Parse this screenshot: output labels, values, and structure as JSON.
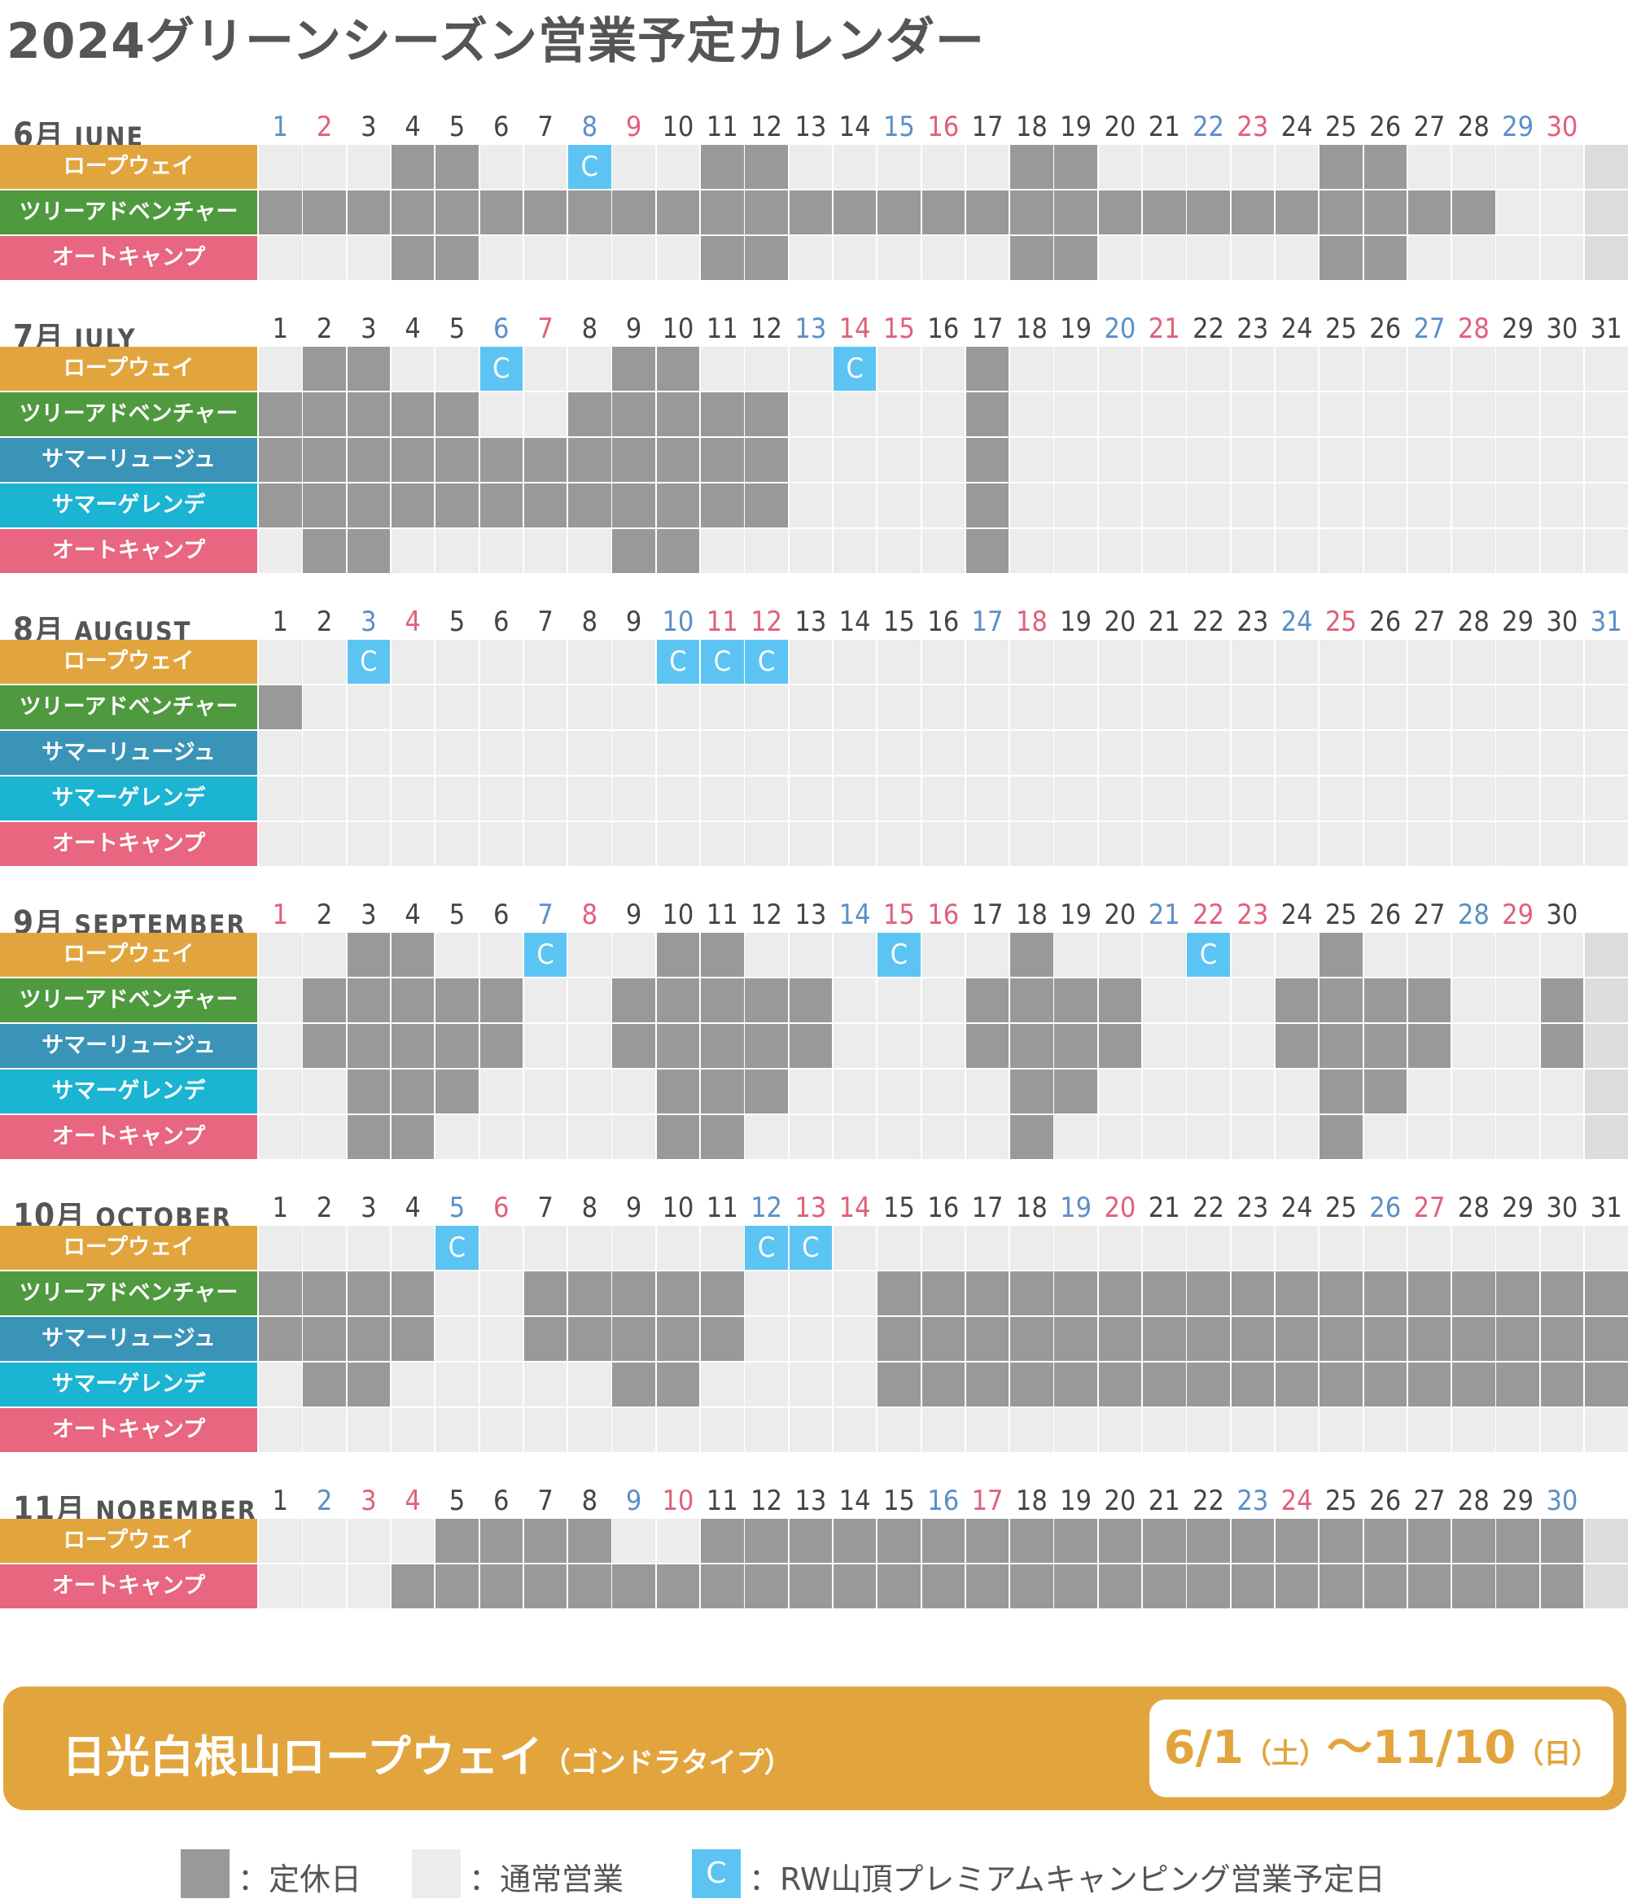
{
  "title": "2024グリーンシーズン営業予定カレンダー",
  "activities": {
    "ropeway": {
      "label": "ロープウェイ",
      "color": "#e2a53e"
    },
    "tree": {
      "label": "ツリーアドベンチャー",
      "color": "#4f9a3f"
    },
    "luge": {
      "label": "サマーリュージュ",
      "color": "#3a94b8"
    },
    "gelande": {
      "label": "サマーゲレンデ",
      "color": "#1bb4d2"
    },
    "camp": {
      "label": "オートキャンプ",
      "color": "#e8667f"
    }
  },
  "colors": {
    "closed": "#999999",
    "open": "#ececec",
    "camp_cell": "#5cc4f2",
    "saturday": "#5b8fc7",
    "holiday": "#e0607a"
  },
  "months": [
    {
      "num": "6",
      "kanji": "月",
      "name": "JUNE",
      "days": 30,
      "sat": [
        1,
        8,
        15,
        22,
        29
      ],
      "sun": [
        2,
        9,
        16,
        23,
        30
      ],
      "rows": [
        {
          "act": "ropeway",
          "closed": [
            4,
            5,
            11,
            12,
            18,
            19,
            25,
            26
          ],
          "camp": [
            8
          ]
        },
        {
          "act": "tree",
          "closed": [
            1,
            2,
            3,
            4,
            5,
            6,
            7,
            8,
            9,
            10,
            11,
            12,
            13,
            14,
            15,
            16,
            17,
            18,
            19,
            20,
            21,
            22,
            23,
            24,
            25,
            26,
            27,
            28
          ],
          "camp": []
        },
        {
          "act": "camp",
          "closed": [
            4,
            5,
            11,
            12,
            18,
            19,
            25,
            26
          ],
          "camp": []
        }
      ]
    },
    {
      "num": "7",
      "kanji": "月",
      "name": "JULY",
      "days": 31,
      "sat": [
        6,
        13,
        20,
        27
      ],
      "sun": [
        7,
        14,
        15,
        21,
        28
      ],
      "rows": [
        {
          "act": "ropeway",
          "closed": [
            2,
            3,
            9,
            10,
            17
          ],
          "camp": [
            6,
            14
          ]
        },
        {
          "act": "tree",
          "closed": [
            1,
            2,
            3,
            4,
            5,
            8,
            9,
            10,
            11,
            12,
            17
          ],
          "camp": []
        },
        {
          "act": "luge",
          "closed": [
            1,
            2,
            3,
            4,
            5,
            6,
            7,
            8,
            9,
            10,
            11,
            12,
            17
          ],
          "camp": []
        },
        {
          "act": "gelande",
          "closed": [
            1,
            2,
            3,
            4,
            5,
            6,
            7,
            8,
            9,
            10,
            11,
            12,
            17
          ],
          "camp": []
        },
        {
          "act": "camp",
          "closed": [
            2,
            3,
            9,
            10,
            17
          ],
          "camp": []
        }
      ]
    },
    {
      "num": "8",
      "kanji": "月",
      "name": "AUGUST",
      "days": 31,
      "sat": [
        3,
        10,
        17,
        24,
        31
      ],
      "sun": [
        4,
        11,
        12,
        18,
        25
      ],
      "rows": [
        {
          "act": "ropeway",
          "closed": [],
          "camp": [
            3,
            10,
            11,
            12
          ]
        },
        {
          "act": "tree",
          "closed": [
            1
          ],
          "camp": []
        },
        {
          "act": "luge",
          "closed": [],
          "camp": []
        },
        {
          "act": "gelande",
          "closed": [],
          "camp": []
        },
        {
          "act": "camp",
          "closed": [],
          "camp": []
        }
      ]
    },
    {
      "num": "9",
      "kanji": "月",
      "name": "SEPTEMBER",
      "days": 30,
      "sat": [
        7,
        14,
        21,
        28
      ],
      "sun": [
        1,
        8,
        15,
        16,
        22,
        23,
        29
      ],
      "rows": [
        {
          "act": "ropeway",
          "closed": [
            3,
            4,
            10,
            11,
            18,
            25
          ],
          "camp": [
            7,
            15,
            22
          ]
        },
        {
          "act": "tree",
          "closed": [
            2,
            3,
            4,
            5,
            6,
            9,
            10,
            11,
            12,
            13,
            17,
            18,
            19,
            20,
            24,
            25,
            26,
            27,
            30
          ],
          "camp": []
        },
        {
          "act": "luge",
          "closed": [
            2,
            3,
            4,
            5,
            6,
            9,
            10,
            11,
            12,
            13,
            17,
            18,
            19,
            20,
            24,
            25,
            26,
            27,
            30
          ],
          "camp": []
        },
        {
          "act": "gelande",
          "closed": [
            3,
            4,
            5,
            10,
            11,
            12,
            18,
            19,
            25,
            26
          ],
          "camp": []
        },
        {
          "act": "camp",
          "closed": [
            3,
            4,
            10,
            11,
            18,
            25
          ],
          "camp": []
        }
      ]
    },
    {
      "num": "10",
      "kanji": "月",
      "name": "OCTOBER",
      "days": 31,
      "sat": [
        5,
        12,
        19,
        26
      ],
      "sun": [
        6,
        13,
        14,
        20,
        27
      ],
      "rows": [
        {
          "act": "ropeway",
          "closed": [],
          "camp": [
            5,
            12,
            13
          ]
        },
        {
          "act": "tree",
          "closed": [
            1,
            2,
            3,
            4,
            7,
            8,
            9,
            10,
            11,
            15,
            16,
            17,
            18,
            19,
            20,
            21,
            22,
            23,
            24,
            25,
            26,
            27,
            28,
            29,
            30,
            31
          ],
          "camp": []
        },
        {
          "act": "luge",
          "closed": [
            1,
            2,
            3,
            4,
            7,
            8,
            9,
            10,
            11,
            15,
            16,
            17,
            18,
            19,
            20,
            21,
            22,
            23,
            24,
            25,
            26,
            27,
            28,
            29,
            30,
            31
          ],
          "camp": []
        },
        {
          "act": "gelande",
          "closed": [
            2,
            3,
            9,
            10,
            15,
            16,
            17,
            18,
            19,
            20,
            21,
            22,
            23,
            24,
            25,
            26,
            27,
            28,
            29,
            30,
            31
          ],
          "camp": []
        },
        {
          "act": "camp",
          "closed": [],
          "camp": []
        }
      ]
    },
    {
      "num": "11",
      "kanji": "月",
      "name": "NOBEMBER",
      "days": 30,
      "sat": [
        2,
        9,
        16,
        23,
        30
      ],
      "sun": [
        3,
        4,
        10,
        17,
        24
      ],
      "rows": [
        {
          "act": "ropeway",
          "closed": [
            5,
            6,
            7,
            8,
            11,
            12,
            13,
            14,
            15,
            16,
            17,
            18,
            19,
            20,
            21,
            22,
            23,
            24,
            25,
            26,
            27,
            28,
            29,
            30
          ],
          "camp": []
        },
        {
          "act": "camp",
          "closed": [
            4,
            5,
            6,
            7,
            8,
            9,
            10,
            11,
            12,
            13,
            14,
            15,
            16,
            17,
            18,
            19,
            20,
            21,
            22,
            23,
            24,
            25,
            26,
            27,
            28,
            29,
            30
          ],
          "camp": []
        }
      ]
    }
  ],
  "banner": {
    "name": "日光白根山ロープウェイ",
    "sub": "（ゴンドラタイプ）",
    "start": "6/1",
    "start_wd": "（土）",
    "tilde": "～",
    "end": "11/10",
    "end_wd": "（日）"
  },
  "legend": {
    "closed": "：定休日",
    "open": "：通常営業",
    "camp_mark": "C",
    "camp": "：RW山頂プレミアムキャンピング営業予定日"
  }
}
